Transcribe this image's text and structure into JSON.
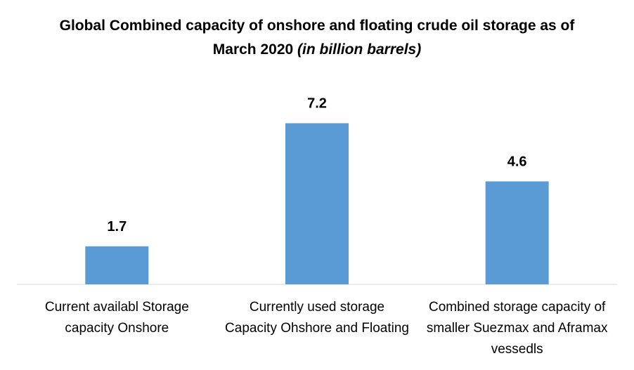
{
  "chart_data": {
    "type": "bar",
    "title": "Global Combined capacity of onshore and floating crude oil storage as of March 2020",
    "title_unit": "(in billion barrels)",
    "categories": [
      "Current availabl Storage capacity Onshore",
      "Currently used storage Capacity Ohshore and Floating",
      "Combined storage capacity of smaller Suezmax and Aframax vessedls"
    ],
    "values": [
      1.7,
      7.2,
      4.6
    ],
    "color": "#5b9bd5",
    "ylim": [
      0,
      8
    ]
  }
}
